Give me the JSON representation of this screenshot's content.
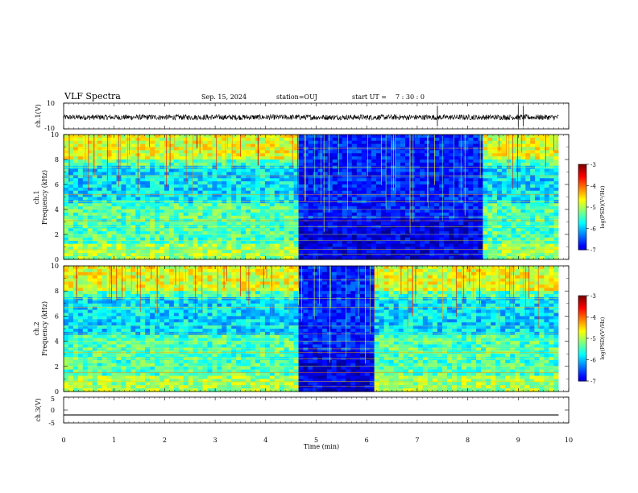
{
  "header": {
    "title": "VLF Spectra",
    "date": "Sep. 15, 2024",
    "station": "station=OUJ",
    "start_label": "start  UT  =",
    "start_time": "7 : 30 : 0"
  },
  "chart_data": [
    {
      "type": "line",
      "id": "ch1-waveform",
      "ylabel": "ch.1(V)",
      "ylim": [
        -10,
        10
      ],
      "y_ticks": [
        "10",
        "-10"
      ],
      "xlim": [
        0,
        10
      ],
      "description_values": "broadband waveform centred near -1 V, amplitude about ±2 V, with spikes near 7.4, 9.0 and 9.1 min",
      "baseline": -1,
      "spikes_min": [
        7.4,
        9.0,
        9.1
      ]
    },
    {
      "type": "heatmap",
      "id": "ch1-spectrogram",
      "ylabel": "ch.1\nFrequency (kHz)",
      "ylabel_lines": [
        "ch.1",
        "Frequency (kHz)"
      ],
      "ylim": [
        0,
        10
      ],
      "y_ticks": [
        "0",
        "2",
        "4",
        "6",
        "8",
        "10"
      ],
      "xlim": [
        0,
        10
      ],
      "segments_min": [
        {
          "from": 0,
          "to": 4.65,
          "level": "high"
        },
        {
          "from": 4.65,
          "to": 8.3,
          "level": "low"
        },
        {
          "from": 8.3,
          "to": 9.8,
          "level": "high"
        }
      ],
      "colorbar": {
        "label": "log(PSD)(V²/Hz)",
        "ticks": [
          "-3",
          "-4",
          "-5",
          "-6",
          "-7"
        ],
        "range": [
          -7,
          -3
        ]
      }
    },
    {
      "type": "heatmap",
      "id": "ch2-spectrogram",
      "ylabel": "ch.2\nFrequency (kHz)",
      "ylabel_lines": [
        "ch.2",
        "Frequency (kHz)"
      ],
      "ylim": [
        0,
        10
      ],
      "y_ticks": [
        "0",
        "2",
        "4",
        "6",
        "8",
        "10"
      ],
      "xlim": [
        0,
        10
      ],
      "segments_min": [
        {
          "from": 0,
          "to": 4.65,
          "level": "high"
        },
        {
          "from": 4.65,
          "to": 6.15,
          "level": "low"
        },
        {
          "from": 6.15,
          "to": 9.8,
          "level": "high"
        }
      ],
      "colorbar": {
        "label": "log(PSD)(V²/Hz)",
        "ticks": [
          "-3",
          "-4",
          "-5",
          "-6",
          "-7"
        ],
        "range": [
          -7,
          -3
        ]
      }
    },
    {
      "type": "line",
      "id": "ch3-waveform",
      "ylabel": "ch.3(V)",
      "ylim": [
        -5,
        5
      ],
      "y_ticks": [
        "5",
        "0",
        "-5"
      ],
      "xlim": [
        0,
        10
      ],
      "x": [
        0,
        9.8
      ],
      "y": [
        -1.9,
        -1.9
      ]
    }
  ],
  "x_axis": {
    "label": "Time  (min)",
    "ticks": [
      "0",
      "1",
      "2",
      "3",
      "4",
      "5",
      "6",
      "7",
      "8",
      "9",
      "10"
    ]
  },
  "colors": {
    "axis": "#000000",
    "colormap": [
      "#00007f",
      "#0000ff",
      "#0080ff",
      "#00ffff",
      "#00ff80",
      "#80ff00",
      "#ffff00",
      "#ff8000",
      "#ff0000",
      "#ffffff"
    ]
  }
}
